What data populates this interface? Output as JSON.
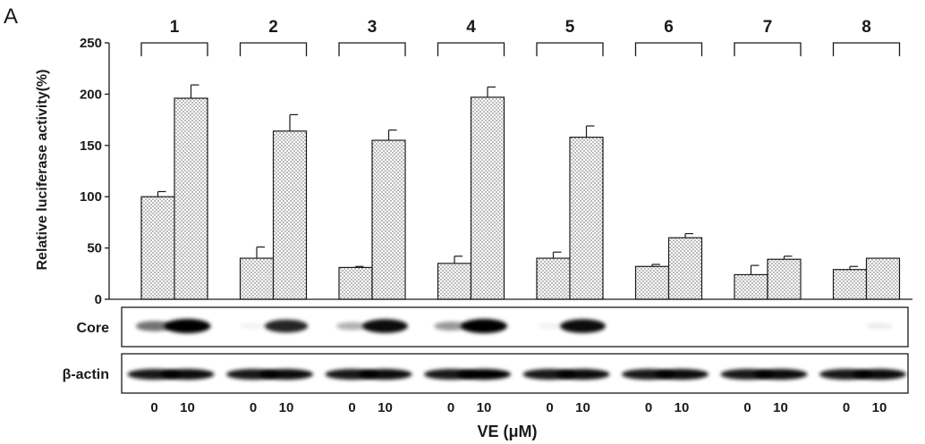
{
  "panel_label": "A",
  "chart_data": {
    "type": "bar",
    "ylabel": "Relative luciferase activity(%)",
    "ylim": [
      0,
      250
    ],
    "yticks": [
      "0",
      "50",
      "100",
      "150",
      "200",
      "250"
    ],
    "grid": false,
    "legend": "none",
    "bar_fill": "dotted",
    "groups": [
      {
        "label": "1",
        "values": [
          100,
          196
        ],
        "errors": [
          5,
          13
        ]
      },
      {
        "label": "2",
        "values": [
          40,
          164
        ],
        "errors": [
          11,
          16
        ]
      },
      {
        "label": "3",
        "values": [
          31,
          155
        ],
        "errors": [
          1,
          10
        ]
      },
      {
        "label": "4",
        "values": [
          35,
          197
        ],
        "errors": [
          7,
          10
        ]
      },
      {
        "label": "5",
        "values": [
          40,
          158
        ],
        "errors": [
          6,
          11
        ]
      },
      {
        "label": "6",
        "values": [
          32,
          60
        ],
        "errors": [
          2,
          4
        ]
      },
      {
        "label": "7",
        "values": [
          24,
          39
        ],
        "errors": [
          9,
          3
        ]
      },
      {
        "label": "8",
        "values": [
          29,
          40
        ],
        "errors": [
          3,
          0
        ]
      }
    ]
  },
  "blot": {
    "rows": [
      {
        "label": "Core",
        "band_intensity": [
          0.55,
          1.0,
          0.05,
          0.85,
          0.3,
          0.95,
          0.4,
          1.0,
          0.05,
          0.95,
          0,
          0,
          0,
          0,
          0,
          0.08
        ]
      },
      {
        "label": "β-actin",
        "band_intensity": [
          0.9,
          0.95,
          0.9,
          0.95,
          0.9,
          0.95,
          0.9,
          1.0,
          0.9,
          0.95,
          0.9,
          0.95,
          0.9,
          0.95,
          0.9,
          0.95
        ]
      }
    ],
    "lane_labels": [
      "0",
      "10",
      "0",
      "10",
      "0",
      "10",
      "0",
      "10",
      "0",
      "10",
      "0",
      "10",
      "0",
      "10",
      "0",
      "10"
    ],
    "xlabel": "VE (μM)"
  }
}
